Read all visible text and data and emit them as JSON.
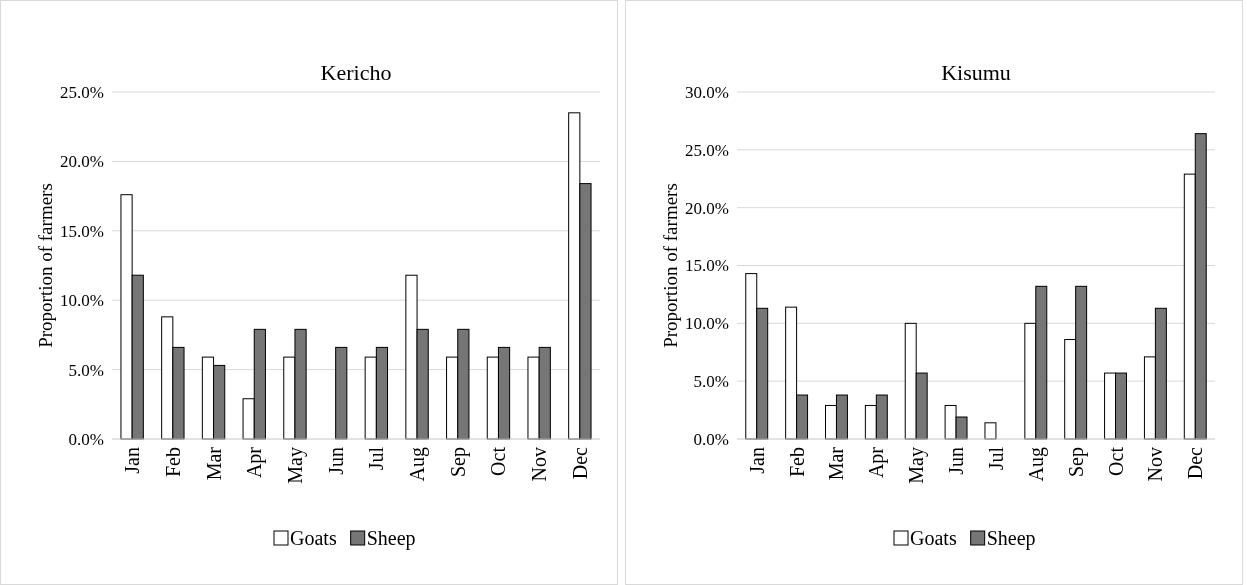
{
  "chart_data": [
    {
      "type": "bar",
      "title": "Kericho",
      "ylabel": "Proportion of farmers",
      "categories": [
        "Jan",
        "Feb",
        "Mar",
        "Apr",
        "May",
        "Jun",
        "Jul",
        "Aug",
        "Sep",
        "Oct",
        "Nov",
        "Dec"
      ],
      "series": [
        {
          "name": "Goats",
          "color": "#ffffff",
          "values": [
            17.6,
            8.8,
            5.9,
            2.9,
            5.9,
            0,
            5.9,
            11.8,
            5.9,
            5.9,
            5.9,
            23.5
          ]
        },
        {
          "name": "Sheep",
          "color": "#767676",
          "values": [
            11.8,
            6.6,
            5.3,
            7.9,
            7.9,
            6.6,
            6.6,
            7.9,
            7.9,
            6.6,
            6.6,
            18.4
          ]
        }
      ],
      "ylim": [
        0,
        25
      ],
      "yticks": [
        {
          "value": 0,
          "label": "0.0%"
        },
        {
          "value": 5,
          "label": "5.0%"
        },
        {
          "value": 10,
          "label": "10.0%"
        },
        {
          "value": 15,
          "label": "15.0%"
        },
        {
          "value": 20,
          "label": "20.0%"
        },
        {
          "value": 25,
          "label": "25.0%"
        }
      ],
      "grid": "y",
      "legend": "bottom"
    },
    {
      "type": "bar",
      "title": "Kisumu",
      "ylabel": "Proportion of farmers",
      "categories": [
        "Jan",
        "Feb",
        "Mar",
        "Apr",
        "May",
        "Jun",
        "Jul",
        "Aug",
        "Sep",
        "Oct",
        "Nov",
        "Dec"
      ],
      "series": [
        {
          "name": "Goats",
          "color": "#ffffff",
          "values": [
            14.3,
            11.4,
            2.9,
            2.9,
            10.0,
            2.9,
            1.4,
            10.0,
            8.6,
            5.7,
            7.1,
            22.9
          ]
        },
        {
          "name": "Sheep",
          "color": "#767676",
          "values": [
            11.3,
            3.8,
            3.8,
            3.8,
            5.7,
            1.9,
            0,
            13.2,
            13.2,
            5.7,
            11.3,
            26.4
          ]
        }
      ],
      "ylim": [
        0,
        30
      ],
      "yticks": [
        {
          "value": 0,
          "label": "0.0%"
        },
        {
          "value": 5,
          "label": "5.0%"
        },
        {
          "value": 10,
          "label": "10.0%"
        },
        {
          "value": 15,
          "label": "15.0%"
        },
        {
          "value": 20,
          "label": "20.0%"
        },
        {
          "value": 25,
          "label": "25.0%"
        },
        {
          "value": 30,
          "label": "30.0%"
        }
      ],
      "grid": "y",
      "legend": "bottom"
    }
  ]
}
